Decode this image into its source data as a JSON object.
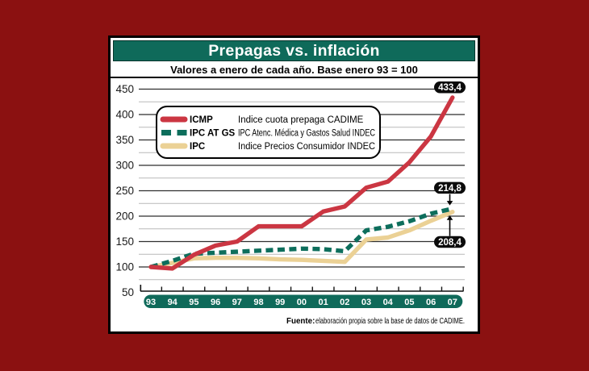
{
  "window": {
    "background": "#8b1111"
  },
  "header": {
    "title": "Prepagas vs. inflación",
    "subtitle": "Valores a enero de cada año. Base enero 93 = 100",
    "title_bar_color": "#0f6a5a",
    "title_text_color": "#ffffff"
  },
  "footer": {
    "source_label": "Fuente:",
    "source_text": "elaboración propia sobre la base de datos de CADIME."
  },
  "chart_data": {
    "type": "line",
    "title": "Prepagas vs. inflación",
    "subtitle": "Valores a enero de cada año. Base enero 93 = 100",
    "x_categories": [
      "93",
      "94",
      "95",
      "96",
      "97",
      "98",
      "99",
      "00",
      "01",
      "02",
      "03",
      "04",
      "05",
      "06",
      "07"
    ],
    "x_strip_color": "#0f6a5a",
    "ylim": [
      50,
      450
    ],
    "ytick_major": 50,
    "ytick_minor": 25,
    "grid": {
      "major_color": "#2f2f2f",
      "minor_color": "#b9b9b9",
      "orientation": "horizontal"
    },
    "legend_position": "top-left-inside",
    "series": [
      {
        "name": "ICMP",
        "description": "Indice cuota prepaga CADIME",
        "color": "#cb3642",
        "dash": false,
        "values": [
          100,
          97,
          124,
          142,
          150,
          180,
          180,
          180,
          209,
          219,
          256,
          268,
          306,
          357,
          433.4
        ]
      },
      {
        "name": "IPC AT GS",
        "description": "IPC Atenc. Médica y Gastos Salud INDEC",
        "color": "#0d6e5c",
        "dash": true,
        "values": [
          100,
          112,
          126,
          128,
          130,
          132,
          134,
          136,
          135,
          131,
          172,
          179,
          190,
          205,
          214.8
        ]
      },
      {
        "name": "IPC",
        "description": "Indice Precios Consumidor INDEC",
        "color": "#ebd195",
        "dash": false,
        "values": [
          100,
          108,
          117,
          118,
          118,
          117,
          115,
          114,
          112,
          110,
          154,
          158,
          172,
          191,
          208.4
        ]
      }
    ],
    "annotations": [
      {
        "text": "433,4",
        "series": "ICMP",
        "x": "07",
        "arrow": "none"
      },
      {
        "text": "214,8",
        "series": "IPC AT GS",
        "x": "07",
        "arrow": "down"
      },
      {
        "text": "208,4",
        "series": "IPC",
        "x": "07",
        "arrow": "up"
      }
    ]
  }
}
